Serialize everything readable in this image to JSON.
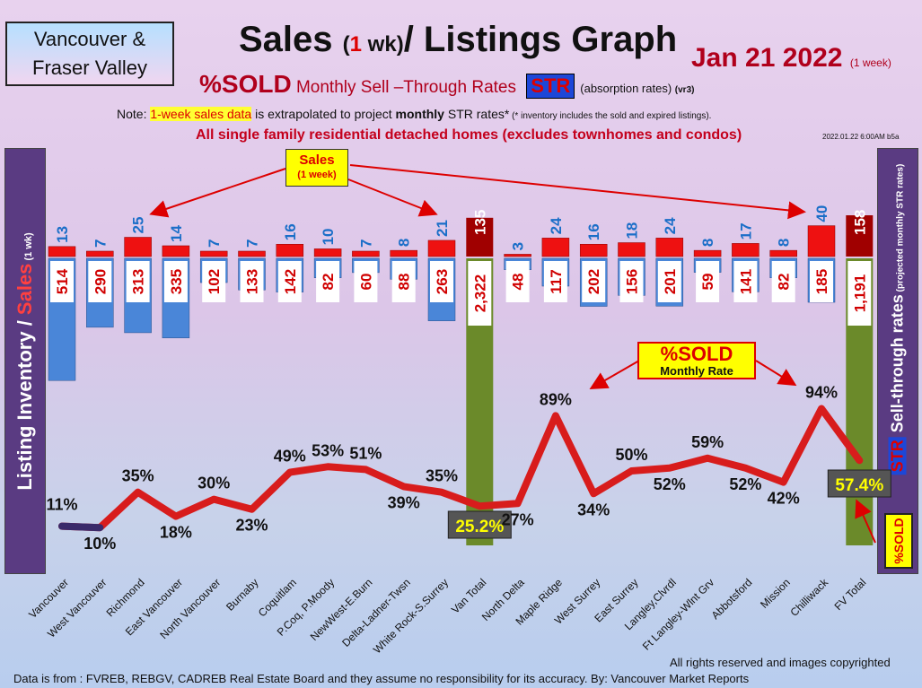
{
  "header": {
    "region_line1": "Vancouver &",
    "region_line2": "Fraser Valley",
    "title_a": "Sales ",
    "title_paren_open": "(",
    "title_one": "1",
    "title_wk": " wk)",
    "title_b": "/ Listings Graph",
    "date": "Jan  21  2022",
    "date_note": "(1 week)",
    "sold_big": "%SOLD",
    "sold_sub": "Monthly Sell –Through Rates",
    "str_badge": "STR",
    "absorption": "(absorption rates)",
    "version": "(vr3)",
    "note_prefix": "Note: ",
    "note_highlight": "1-week sales data",
    "note_mid": " is extrapolated to project ",
    "note_monthly": "monthly",
    "note_end": " STR rates*",
    "note_small": " (* inventory includes the sold and expired listings).",
    "detached": "All single family residential detached homes (excludes townhomes and condos)",
    "stamp": "2022.01.22 6:00AM b5a"
  },
  "side": {
    "left_a": "Listing Inventory / ",
    "left_b": "Sales",
    "left_c": " (1 wk)",
    "right_a": "%SOLD ",
    "right_str": "STR",
    "right_b": " Sell-through rates",
    "right_c": " (projected monthly STR rates)"
  },
  "callouts": {
    "sales_a": "Sales",
    "sales_b": "(1 week)",
    "sold_a": "%SOLD",
    "sold_b": "Monthly Rate"
  },
  "footer": {
    "rights": "All rights reserved and  images copyrighted",
    "source": "Data is from : FVREB, REBGV, CADREB Real Estate Board and they assume no responsibility for its accuracy. By: Vancouver Market Reports"
  },
  "colors": {
    "sales_bar": "#ee1111",
    "inventory_bar": "#4a86d8",
    "total_bar": "#6b8a2a",
    "total_sales": "#a00000",
    "sales_label": "#1a6ec8",
    "inventory_label": "#d00000",
    "str_line": "#d81c1c"
  },
  "chart_data": {
    "type": "bar",
    "categories": [
      "Vancouver",
      "West Vancouver",
      "Richmond",
      "East Vancouver",
      "North Vancouver",
      "Burnaby",
      "Coquitlam",
      "P.Coq, P.Moody",
      "NewWest-E.Burn",
      "Delta-Ladner-Twsn",
      "White Rock-S.Surrey",
      "Van Total",
      "North Delta",
      "Maple Ridge",
      "West Surrey",
      "East Surrey",
      "Langley,Clvrdl",
      "Ft Langley-Wlnt Grv",
      "Abbotsford",
      "Mission",
      "Chilliwack",
      "FV Total"
    ],
    "sales": [
      13,
      7,
      25,
      14,
      7,
      7,
      16,
      10,
      7,
      8,
      21,
      135,
      3,
      24,
      16,
      18,
      24,
      8,
      17,
      8,
      40,
      158
    ],
    "sales_labels": [
      "13",
      "7",
      "25",
      "14",
      "7",
      "7",
      "16",
      "10",
      "7",
      "8",
      "21",
      "135",
      "3",
      "24",
      "16",
      "18",
      "24",
      "8",
      "17",
      "8",
      "40",
      "158"
    ],
    "inventory": [
      514,
      290,
      313,
      335,
      102,
      133,
      142,
      82,
      60,
      88,
      263,
      2322,
      48,
      117,
      202,
      156,
      201,
      59,
      141,
      82,
      185,
      1191
    ],
    "inventory_labels": [
      "514",
      "290",
      "313",
      "335",
      "102",
      "133",
      "142",
      "82",
      "60",
      "88",
      "263",
      "2,322",
      "48",
      "117",
      "202",
      "156",
      "201",
      "59",
      "141",
      "82",
      "185",
      "1,191"
    ],
    "str_percent": [
      11,
      10,
      35,
      18,
      30,
      23,
      49,
      53,
      51,
      39,
      35,
      25.2,
      27,
      89,
      34,
      50,
      52,
      59,
      52,
      42,
      94,
      57.4
    ],
    "str_labels": [
      "11%",
      "10%",
      "35%",
      "18%",
      "30%",
      "23%",
      "49%",
      "53%",
      "51%",
      "39%",
      "35%",
      "25.2%",
      "27%",
      "89%",
      "34%",
      "50%",
      "52%",
      "59%",
      "52%",
      "42%",
      "94%",
      "57.4%"
    ],
    "series": [
      {
        "name": "Sales",
        "values": [
          13,
          7,
          25,
          14,
          7,
          7,
          16,
          10,
          7,
          8,
          21,
          135,
          3,
          24,
          16,
          18,
          24,
          8,
          17,
          8,
          40,
          158
        ]
      },
      {
        "name": "Listing Inventory",
        "values": [
          514,
          290,
          313,
          335,
          102,
          133,
          142,
          82,
          60,
          88,
          263,
          2322,
          48,
          117,
          202,
          156,
          201,
          59,
          141,
          82,
          185,
          1191
        ]
      },
      {
        "name": "%SOLD",
        "values": [
          11,
          10,
          35,
          18,
          30,
          23,
          49,
          53,
          51,
          39,
          35,
          25.2,
          27,
          89,
          34,
          50,
          52,
          59,
          52,
          42,
          94,
          57.4
        ]
      }
    ],
    "ylabel": "Listing Inventory / Sales (1 wk)",
    "y2label": "%SOLD STR Sell-through rates (projected monthly STR rates)",
    "grid": false
  }
}
